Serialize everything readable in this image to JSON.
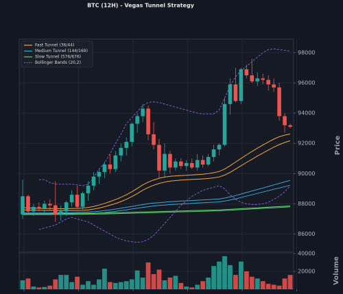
{
  "chart_data": [
    {
      "type": "candlestick",
      "title": "BTC (12H) - Vegas Tunnel Strategy",
      "y_label": "Price",
      "up_color": "#26a69a",
      "down_color": "#ef5350",
      "open": [
        87300,
        88500,
        87500,
        87800,
        87700,
        88000,
        87900,
        87300,
        87500,
        88100,
        88600,
        87800,
        88700,
        89200,
        89800,
        90100,
        90600,
        90300,
        91200,
        91700,
        92100,
        93300,
        93800,
        94300,
        92600,
        91900,
        90200,
        91300,
        90400,
        90800,
        90500,
        90700,
        90400,
        90900,
        90600,
        91100,
        91600,
        91900,
        94600,
        95900,
        94800,
        96900,
        96500,
        96100,
        96300,
        96200,
        95900,
        95700,
        93800,
        93200
      ],
      "high": [
        89600,
        88600,
        88000,
        88100,
        88200,
        88300,
        89500,
        87900,
        88200,
        88900,
        89200,
        88800,
        89500,
        90100,
        90300,
        90800,
        91300,
        91500,
        92000,
        92400,
        93400,
        94000,
        94600,
        94500,
        93400,
        92300,
        92000,
        91500,
        91000,
        91000,
        90900,
        91000,
        91300,
        91200,
        91300,
        91900,
        92000,
        95000,
        96300,
        97000,
        97000,
        97200,
        97600,
        96700,
        96600,
        96500,
        96300,
        96000,
        94000,
        93300
      ],
      "low": [
        87000,
        87400,
        87200,
        87500,
        87400,
        87600,
        86800,
        86900,
        87200,
        87800,
        87700,
        87600,
        88200,
        88900,
        89300,
        89700,
        90000,
        90100,
        90800,
        91200,
        91800,
        92700,
        93400,
        92200,
        91600,
        89700,
        89800,
        90000,
        90200,
        90300,
        90200,
        90300,
        90200,
        90400,
        90500,
        90800,
        91200,
        91800,
        93900,
        94700,
        94600,
        96300,
        96000,
        95800,
        95900,
        95500,
        95400,
        93500,
        92700,
        93000
      ],
      "close": [
        88500,
        87500,
        87800,
        87700,
        88000,
        87900,
        87300,
        87500,
        88100,
        88600,
        87800,
        88700,
        89200,
        89800,
        90100,
        90600,
        90300,
        91200,
        91700,
        92100,
        93300,
        93800,
        94300,
        92600,
        91900,
        90200,
        91300,
        90400,
        90800,
        90500,
        90700,
        90400,
        90900,
        90600,
        91100,
        91600,
        91900,
        94600,
        95900,
        94800,
        96900,
        96500,
        96100,
        96300,
        96200,
        95900,
        95700,
        93800,
        93200,
        93100
      ],
      "overlays": [
        {
          "name": "Fast Tunnel (36/44)",
          "color": "#f5a742",
          "dashed": false,
          "upper": [
            87750,
            87730,
            87710,
            87700,
            87690,
            87690,
            87690,
            87680,
            87680,
            87690,
            87700,
            87720,
            87760,
            87830,
            87920,
            88030,
            88150,
            88280,
            88430,
            88600,
            88800,
            89020,
            89250,
            89440,
            89580,
            89690,
            89770,
            89820,
            89850,
            89870,
            89890,
            89910,
            89930,
            89960,
            90000,
            90060,
            90140,
            90300,
            90520,
            90760,
            91000,
            91240,
            91460,
            91680,
            91890,
            92090,
            92280,
            92440,
            92550,
            92620
          ],
          "lower": [
            87600,
            87590,
            87580,
            87570,
            87560,
            87560,
            87560,
            87550,
            87550,
            87550,
            87560,
            87570,
            87600,
            87650,
            87720,
            87810,
            87910,
            88020,
            88150,
            88300,
            88480,
            88680,
            88900,
            89080,
            89230,
            89350,
            89440,
            89500,
            89540,
            89570,
            89590,
            89610,
            89630,
            89650,
            89680,
            89720,
            89780,
            89900,
            90080,
            90300,
            90520,
            90740,
            90950,
            91160,
            91360,
            91560,
            91750,
            91920,
            92060,
            92170
          ]
        },
        {
          "name": "Medium Tunnel (144/169)",
          "color": "#3fa7d6",
          "dashed": false,
          "upper": [
            87400,
            87400,
            87400,
            87400,
            87400,
            87400,
            87410,
            87410,
            87410,
            87420,
            87430,
            87440,
            87460,
            87480,
            87510,
            87550,
            87600,
            87650,
            87710,
            87770,
            87830,
            87890,
            87950,
            88010,
            88050,
            88080,
            88110,
            88140,
            88160,
            88180,
            88200,
            88220,
            88240,
            88260,
            88280,
            88300,
            88320,
            88380,
            88460,
            88550,
            88650,
            88750,
            88850,
            88950,
            89050,
            89150,
            89250,
            89350,
            89450,
            89550
          ],
          "lower": [
            87300,
            87300,
            87300,
            87300,
            87300,
            87300,
            87310,
            87310,
            87310,
            87310,
            87320,
            87330,
            87340,
            87360,
            87390,
            87420,
            87460,
            87500,
            87550,
            87600,
            87660,
            87710,
            87760,
            87810,
            87860,
            87890,
            87920,
            87950,
            87970,
            87990,
            88010,
            88030,
            88050,
            88070,
            88090,
            88110,
            88130,
            88180,
            88250,
            88330,
            88420,
            88510,
            88600,
            88690,
            88780,
            88870,
            88960,
            89050,
            89140,
            89230
          ]
        },
        {
          "name": "Slow Tunnel (576/676)",
          "color": "#5ccf6b",
          "dashed": false,
          "upper": [
            87350,
            87350,
            87350,
            87350,
            87350,
            87350,
            87360,
            87360,
            87360,
            87360,
            87370,
            87370,
            87380,
            87380,
            87390,
            87390,
            87400,
            87410,
            87420,
            87430,
            87440,
            87450,
            87460,
            87470,
            87480,
            87490,
            87500,
            87510,
            87520,
            87530,
            87540,
            87550,
            87560,
            87570,
            87580,
            87590,
            87600,
            87620,
            87640,
            87660,
            87680,
            87700,
            87720,
            87740,
            87760,
            87780,
            87800,
            87820,
            87840,
            87860
          ],
          "lower": [
            87290,
            87290,
            87290,
            87290,
            87290,
            87290,
            87300,
            87300,
            87300,
            87300,
            87310,
            87310,
            87320,
            87320,
            87330,
            87330,
            87340,
            87350,
            87360,
            87370,
            87380,
            87390,
            87400,
            87410,
            87420,
            87430,
            87440,
            87450,
            87460,
            87470,
            87480,
            87490,
            87500,
            87510,
            87520,
            87530,
            87540,
            87560,
            87580,
            87600,
            87620,
            87640,
            87660,
            87680,
            87700,
            87720,
            87740,
            87760,
            87780,
            87800
          ]
        },
        {
          "name": "Bollinger Bands (20,2)",
          "color": "#7b5cd6",
          "dashed": true,
          "upper": [
            null,
            null,
            null,
            89600,
            89600,
            89400,
            89300,
            89300,
            89300,
            89300,
            89250,
            89200,
            89300,
            89700,
            90300,
            90700,
            91300,
            92000,
            92600,
            93300,
            93700,
            94100,
            94500,
            94700,
            94750,
            94700,
            94600,
            94500,
            94400,
            94300,
            94200,
            94100,
            94000,
            93950,
            93950,
            93950,
            94200,
            95000,
            95800,
            96400,
            96800,
            97100,
            97400,
            97700,
            98000,
            98200,
            98250,
            98200,
            98150,
            98100
          ],
          "lower": [
            null,
            null,
            null,
            86300,
            86400,
            86500,
            86600,
            86800,
            87000,
            87100,
            87000,
            86900,
            86800,
            86600,
            86400,
            86200,
            86000,
            85800,
            85650,
            85550,
            85500,
            85450,
            85500,
            85650,
            85900,
            86300,
            86700,
            87100,
            87500,
            87900,
            88200,
            88500,
            88700,
            88900,
            89000,
            89100,
            89200,
            89000,
            88600,
            88300,
            88100,
            88000,
            87950,
            87950,
            88000,
            88100,
            88300,
            88500,
            88800,
            89200
          ]
        }
      ],
      "ylim": [
        84800,
        98900
      ],
      "yticks": [
        86000,
        88000,
        90000,
        92000,
        94000,
        96000,
        98000
      ],
      "grid": true,
      "legend": "upper left"
    },
    {
      "type": "bar",
      "y_label": "Volume",
      "values": [
        10000,
        12000,
        3000,
        2000,
        2500,
        4000,
        11000,
        16000,
        16000,
        8000,
        14000,
        5000,
        9000,
        5000,
        11000,
        23000,
        8000,
        7000,
        8000,
        9000,
        11000,
        21000,
        13000,
        30000,
        17000,
        22000,
        10000,
        13000,
        15000,
        7000,
        3000,
        2000,
        5000,
        9000,
        13000,
        26000,
        31000,
        37000,
        27000,
        16000,
        31000,
        20000,
        14000,
        12000,
        9000,
        6000,
        5000,
        4000,
        12000,
        16000
      ],
      "ylim": [
        0,
        41500
      ],
      "yticks": [
        20000,
        40000
      ],
      "grid": true
    }
  ]
}
